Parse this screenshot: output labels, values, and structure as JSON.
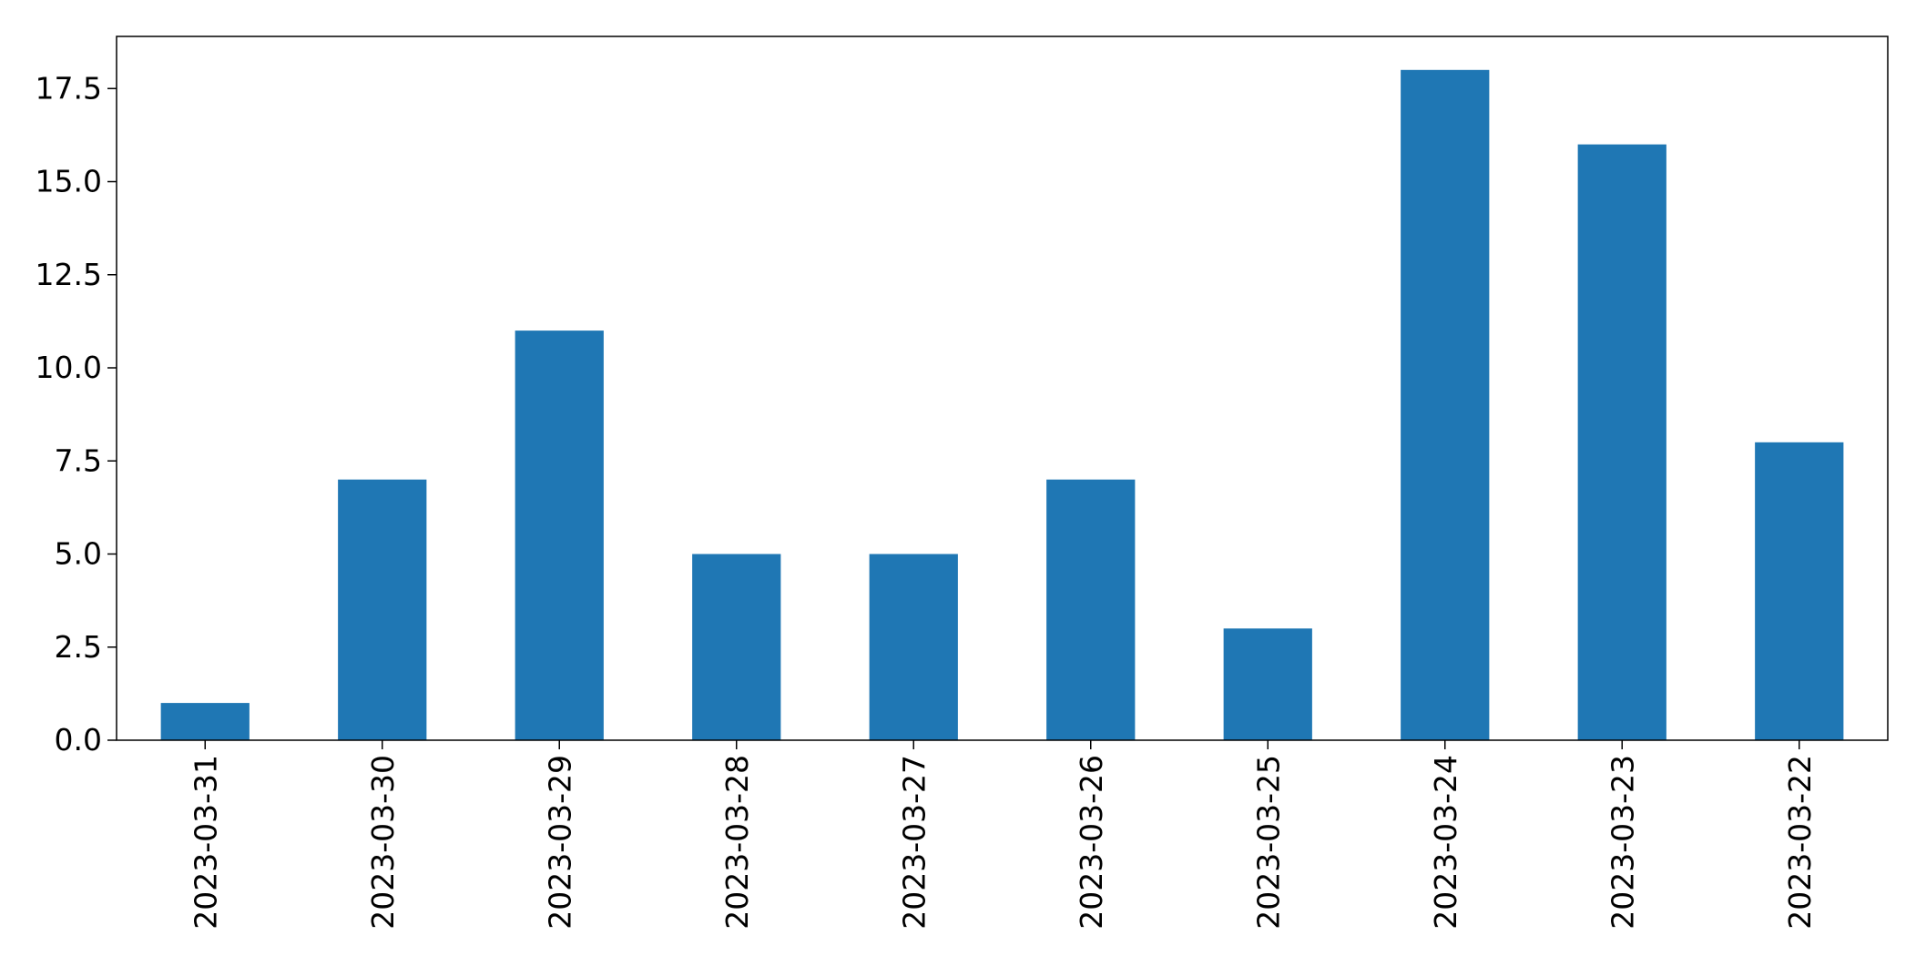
{
  "chart_data": {
    "type": "bar",
    "title": "",
    "xlabel": "",
    "ylabel": "",
    "categories": [
      "2023-03-31",
      "2023-03-30",
      "2023-03-29",
      "2023-03-28",
      "2023-03-27",
      "2023-03-26",
      "2023-03-25",
      "2023-03-24",
      "2023-03-23",
      "2023-03-22"
    ],
    "values": [
      1,
      7,
      11,
      5,
      5,
      7,
      3,
      18,
      16,
      8
    ],
    "ylim": [
      0,
      18.9
    ],
    "yticks": [
      "0.0",
      "2.5",
      "5.0",
      "7.5",
      "10.0",
      "12.5",
      "15.0",
      "17.5"
    ],
    "grid": false,
    "legend": "none",
    "bar_color": "#1f77b4"
  }
}
